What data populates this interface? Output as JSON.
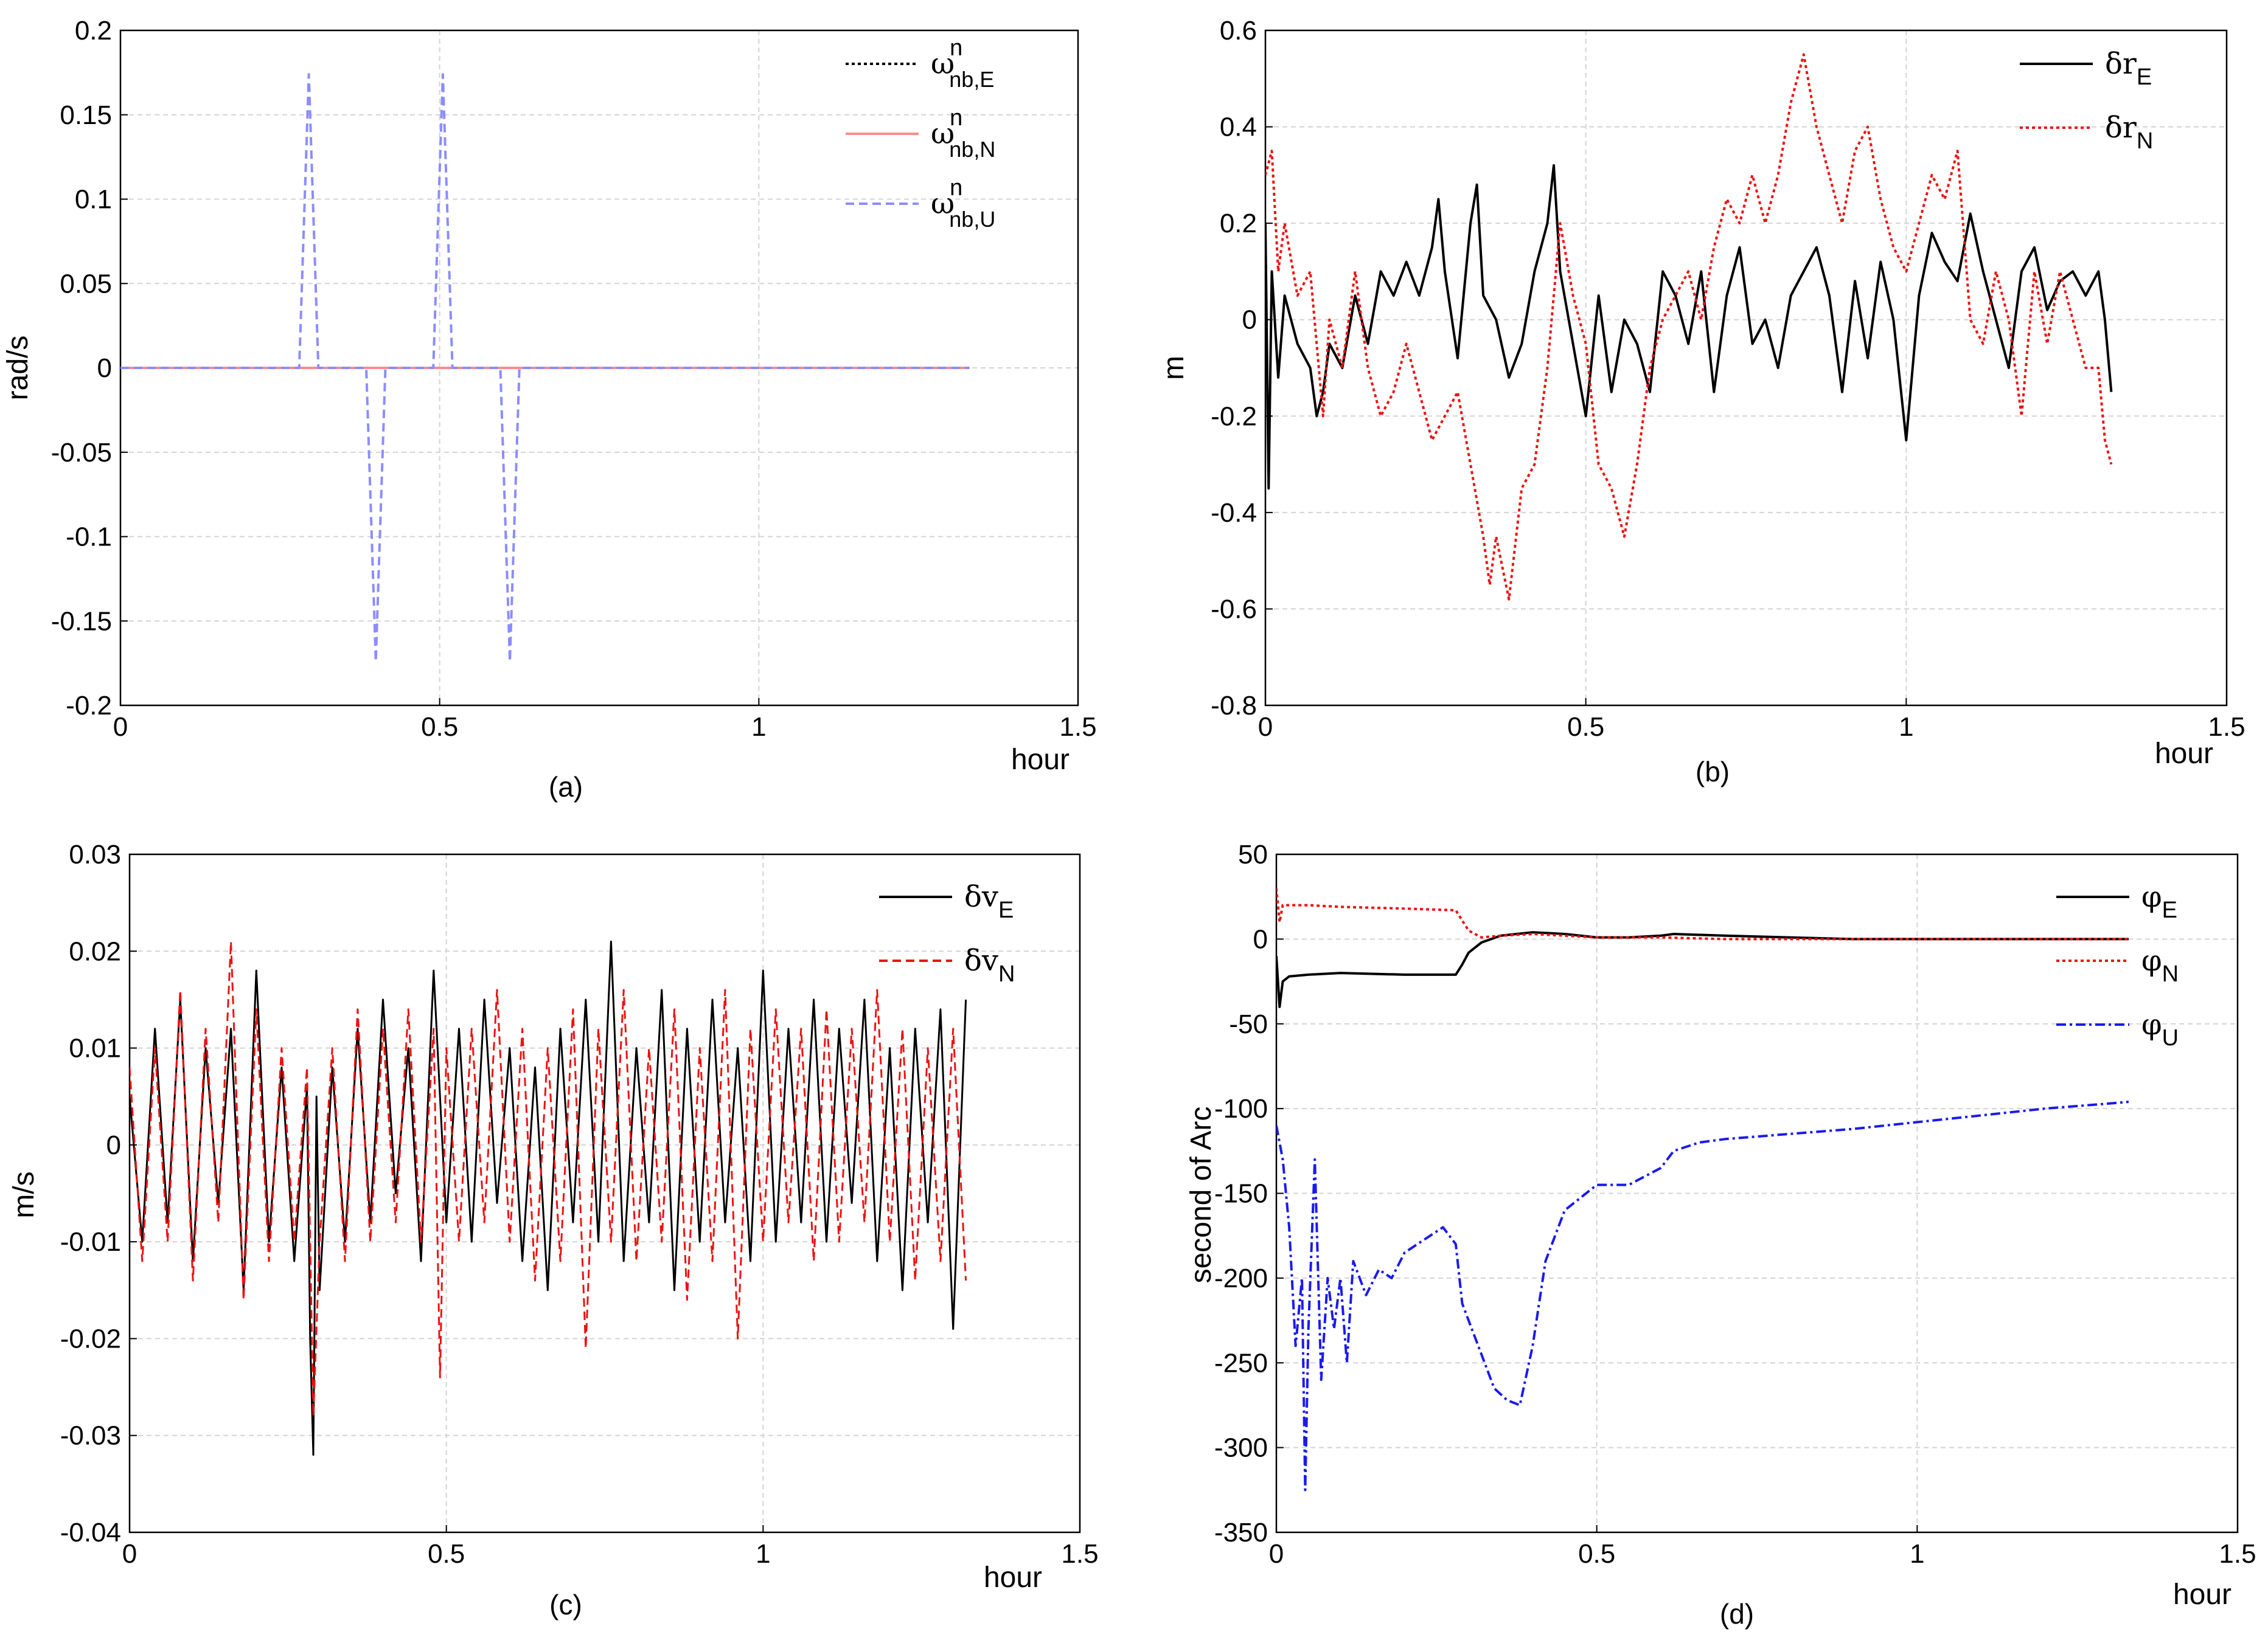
{
  "chart_data": [
    {
      "id": "a",
      "type": "line",
      "caption": "(a)",
      "xlabel": "hour",
      "ylabel": "rad/s",
      "xlim": [
        0,
        1.5
      ],
      "ylim": [
        -0.2,
        0.2
      ],
      "xticks": [
        0,
        0.5,
        1,
        1.5
      ],
      "xtick_labels": [
        "0",
        "0.5",
        "1",
        "1.5"
      ],
      "yticks": [
        -0.2,
        -0.15,
        -0.1,
        -0.05,
        0,
        0.05,
        0.1,
        0.15,
        0.2
      ],
      "ytick_labels": [
        "-0.2",
        "-0.15",
        "-0.1",
        "-0.05",
        "0",
        "0.05",
        "0.1",
        "0.15",
        "0.2"
      ],
      "grid": true,
      "legend_position": "top-right",
      "series": [
        {
          "name": "ω",
          "sup": "n",
          "sub": "nb,E",
          "color": "#000000",
          "style": "dotted",
          "x": [
            0,
            1.33
          ],
          "y": [
            0,
            0
          ]
        },
        {
          "name": "ω",
          "sup": "n",
          "sub": "nb,N",
          "color": "#ff8c8c",
          "style": "solid",
          "x": [
            0,
            1.33
          ],
          "y": [
            0,
            0
          ]
        },
        {
          "name": "ω",
          "sup": "n",
          "sub": "nb,U",
          "color": "#8c8cff",
          "style": "dashed",
          "x": [
            0,
            0.28,
            0.295,
            0.31,
            0.385,
            0.4,
            0.415,
            0.49,
            0.505,
            0.52,
            0.595,
            0.61,
            0.625,
            1.33
          ],
          "y": [
            0,
            0,
            0.174,
            0,
            0,
            -0.174,
            0,
            0,
            0.174,
            0,
            0,
            -0.174,
            0,
            0
          ]
        }
      ]
    },
    {
      "id": "b",
      "type": "line",
      "caption": "(b)",
      "xlabel": "hour",
      "ylabel": "m",
      "xlim": [
        0,
        1.5
      ],
      "ylim": [
        -0.8,
        0.6
      ],
      "xticks": [
        0,
        0.5,
        1,
        1.5
      ],
      "xtick_labels": [
        "0",
        "0.5",
        "1",
        "1.5"
      ],
      "yticks": [
        -0.8,
        -0.6,
        -0.4,
        -0.2,
        0,
        0.2,
        0.4,
        0.6
      ],
      "ytick_labels": [
        "-0.8",
        "-0.6",
        "-0.4",
        "-0.2",
        "0",
        "0.2",
        "0.4",
        "0.6"
      ],
      "grid": true,
      "legend_position": "top-right",
      "series": [
        {
          "name": "δr",
          "sub": "E",
          "color": "#000000",
          "style": "solid",
          "x": [
            0,
            0.005,
            0.01,
            0.02,
            0.03,
            0.05,
            0.07,
            0.08,
            0.09,
            0.1,
            0.12,
            0.14,
            0.16,
            0.18,
            0.2,
            0.22,
            0.24,
            0.26,
            0.27,
            0.28,
            0.3,
            0.32,
            0.33,
            0.34,
            0.36,
            0.38,
            0.4,
            0.42,
            0.44,
            0.45,
            0.46,
            0.48,
            0.5,
            0.52,
            0.54,
            0.56,
            0.58,
            0.6,
            0.62,
            0.64,
            0.66,
            0.68,
            0.7,
            0.72,
            0.74,
            0.76,
            0.78,
            0.8,
            0.82,
            0.84,
            0.86,
            0.88,
            0.9,
            0.92,
            0.94,
            0.96,
            0.98,
            1.0,
            1.02,
            1.04,
            1.06,
            1.08,
            1.1,
            1.12,
            1.14,
            1.16,
            1.18,
            1.2,
            1.22,
            1.24,
            1.26,
            1.28,
            1.3,
            1.31,
            1.32
          ],
          "y": [
            0.2,
            -0.35,
            0.1,
            -0.12,
            0.05,
            -0.05,
            -0.1,
            -0.2,
            -0.15,
            -0.05,
            -0.1,
            0.05,
            -0.05,
            0.1,
            0.05,
            0.12,
            0.05,
            0.15,
            0.25,
            0.1,
            -0.08,
            0.2,
            0.28,
            0.05,
            0.0,
            -0.12,
            -0.05,
            0.1,
            0.2,
            0.32,
            0.1,
            -0.05,
            -0.2,
            0.05,
            -0.15,
            0.0,
            -0.05,
            -0.15,
            0.1,
            0.05,
            -0.05,
            0.1,
            -0.15,
            0.05,
            0.15,
            -0.05,
            0.0,
            -0.1,
            0.05,
            0.1,
            0.15,
            0.05,
            -0.15,
            0.08,
            -0.08,
            0.12,
            0.0,
            -0.25,
            0.05,
            0.18,
            0.12,
            0.08,
            0.22,
            0.1,
            0.0,
            -0.1,
            0.1,
            0.15,
            0.02,
            0.08,
            0.1,
            0.05,
            0.1,
            0.0,
            -0.15
          ]
        },
        {
          "name": "δr",
          "sub": "N",
          "color": "#ee1111",
          "style": "dotted",
          "x": [
            0,
            0.01,
            0.02,
            0.03,
            0.05,
            0.07,
            0.09,
            0.1,
            0.12,
            0.14,
            0.16,
            0.18,
            0.2,
            0.22,
            0.24,
            0.26,
            0.28,
            0.3,
            0.32,
            0.34,
            0.35,
            0.36,
            0.38,
            0.4,
            0.42,
            0.44,
            0.46,
            0.48,
            0.5,
            0.52,
            0.54,
            0.56,
            0.58,
            0.6,
            0.62,
            0.64,
            0.66,
            0.68,
            0.7,
            0.72,
            0.74,
            0.76,
            0.78,
            0.8,
            0.82,
            0.84,
            0.86,
            0.88,
            0.9,
            0.92,
            0.94,
            0.96,
            0.98,
            1.0,
            1.02,
            1.04,
            1.06,
            1.08,
            1.1,
            1.12,
            1.14,
            1.16,
            1.18,
            1.2,
            1.22,
            1.24,
            1.26,
            1.28,
            1.3,
            1.31,
            1.32
          ],
          "y": [
            0.3,
            0.35,
            0.1,
            0.2,
            0.05,
            0.1,
            -0.2,
            0.0,
            -0.1,
            0.1,
            -0.1,
            -0.2,
            -0.15,
            -0.05,
            -0.15,
            -0.25,
            -0.2,
            -0.15,
            -0.3,
            -0.45,
            -0.55,
            -0.45,
            -0.58,
            -0.35,
            -0.3,
            -0.1,
            0.2,
            0.05,
            -0.05,
            -0.3,
            -0.35,
            -0.45,
            -0.3,
            -0.1,
            0.0,
            0.05,
            0.1,
            0.0,
            0.15,
            0.25,
            0.2,
            0.3,
            0.2,
            0.3,
            0.45,
            0.55,
            0.4,
            0.3,
            0.2,
            0.35,
            0.4,
            0.25,
            0.15,
            0.1,
            0.2,
            0.3,
            0.25,
            0.35,
            0.0,
            -0.05,
            0.1,
            0.0,
            -0.2,
            0.1,
            -0.05,
            0.1,
            0.0,
            -0.1,
            -0.1,
            -0.25,
            -0.3
          ]
        }
      ]
    },
    {
      "id": "c",
      "type": "line",
      "caption": "(c)",
      "xlabel": "hour",
      "ylabel": "m/s",
      "xlim": [
        0,
        1.5
      ],
      "ylim": [
        -0.04,
        0.03
      ],
      "xticks": [
        0,
        0.5,
        1,
        1.5
      ],
      "xtick_labels": [
        "0",
        "0.5",
        "1",
        "1.5"
      ],
      "yticks": [
        -0.04,
        -0.03,
        -0.02,
        -0.01,
        0,
        0.01,
        0.02,
        0.03
      ],
      "ytick_labels": [
        "-0.04",
        "-0.03",
        "-0.02",
        "-0.01",
        "0",
        "0.01",
        "0.02",
        "0.03"
      ],
      "grid": true,
      "legend_position": "top-right",
      "series": [
        {
          "name": "δv",
          "sub": "E",
          "color": "#000000",
          "style": "solid",
          "x": [
            0,
            0.02,
            0.04,
            0.06,
            0.08,
            0.1,
            0.12,
            0.14,
            0.16,
            0.18,
            0.2,
            0.22,
            0.24,
            0.26,
            0.28,
            0.285,
            0.29,
            0.295,
            0.3,
            0.32,
            0.34,
            0.36,
            0.38,
            0.4,
            0.42,
            0.44,
            0.46,
            0.48,
            0.5,
            0.52,
            0.54,
            0.56,
            0.58,
            0.6,
            0.62,
            0.64,
            0.66,
            0.68,
            0.7,
            0.72,
            0.74,
            0.76,
            0.78,
            0.8,
            0.82,
            0.84,
            0.86,
            0.88,
            0.9,
            0.92,
            0.94,
            0.96,
            0.98,
            1.0,
            1.02,
            1.04,
            1.06,
            1.08,
            1.1,
            1.12,
            1.14,
            1.16,
            1.18,
            1.2,
            1.22,
            1.24,
            1.26,
            1.28,
            1.3,
            1.32
          ],
          "y": [
            0.005,
            -0.01,
            0.012,
            -0.008,
            0.015,
            -0.012,
            0.01,
            -0.006,
            0.012,
            -0.015,
            0.018,
            -0.01,
            0.008,
            -0.012,
            0.006,
            -0.02,
            -0.032,
            0.005,
            -0.015,
            0.008,
            -0.01,
            0.012,
            -0.008,
            0.015,
            -0.005,
            0.01,
            -0.012,
            0.018,
            -0.008,
            0.012,
            -0.01,
            0.015,
            -0.006,
            0.01,
            -0.012,
            0.008,
            -0.015,
            0.012,
            -0.008,
            0.015,
            -0.01,
            0.021,
            -0.012,
            0.01,
            -0.008,
            0.016,
            -0.015,
            0.012,
            -0.01,
            0.015,
            -0.008,
            0.01,
            -0.012,
            0.018,
            -0.01,
            0.012,
            -0.008,
            0.015,
            -0.01,
            0.012,
            -0.006,
            0.015,
            -0.012,
            0.01,
            -0.015,
            0.012,
            -0.008,
            0.014,
            -0.019,
            0.015
          ]
        },
        {
          "name": "δv",
          "sub": "N",
          "color": "#ee1111",
          "style": "dashed",
          "x": [
            0,
            0.02,
            0.04,
            0.06,
            0.08,
            0.1,
            0.12,
            0.14,
            0.16,
            0.18,
            0.2,
            0.22,
            0.24,
            0.26,
            0.28,
            0.29,
            0.3,
            0.32,
            0.34,
            0.36,
            0.38,
            0.4,
            0.42,
            0.44,
            0.46,
            0.48,
            0.49,
            0.5,
            0.52,
            0.54,
            0.56,
            0.58,
            0.6,
            0.62,
            0.64,
            0.66,
            0.68,
            0.7,
            0.72,
            0.74,
            0.76,
            0.78,
            0.8,
            0.82,
            0.84,
            0.86,
            0.88,
            0.9,
            0.92,
            0.94,
            0.96,
            0.98,
            1.0,
            1.02,
            1.04,
            1.06,
            1.08,
            1.1,
            1.12,
            1.14,
            1.16,
            1.18,
            1.2,
            1.22,
            1.24,
            1.26,
            1.28,
            1.3,
            1.32
          ],
          "y": [
            0.008,
            -0.012,
            0.01,
            -0.01,
            0.016,
            -0.014,
            0.012,
            -0.008,
            0.021,
            -0.016,
            0.014,
            -0.012,
            0.01,
            -0.01,
            0.008,
            -0.028,
            -0.01,
            0.01,
            -0.012,
            0.014,
            -0.01,
            0.012,
            -0.008,
            0.014,
            -0.01,
            0.012,
            -0.024,
            0.01,
            -0.01,
            0.012,
            -0.008,
            0.016,
            -0.01,
            0.012,
            -0.014,
            0.01,
            -0.012,
            0.014,
            -0.021,
            0.012,
            -0.01,
            0.016,
            -0.012,
            0.01,
            -0.01,
            0.014,
            -0.016,
            0.01,
            -0.012,
            0.016,
            -0.02,
            0.012,
            -0.01,
            0.014,
            -0.008,
            0.012,
            -0.012,
            0.014,
            -0.01,
            0.012,
            -0.008,
            0.016,
            -0.01,
            0.012,
            -0.014,
            0.01,
            -0.012,
            0.012,
            -0.014
          ]
        }
      ]
    },
    {
      "id": "d",
      "type": "line",
      "caption": "(d)",
      "xlabel": "hour",
      "ylabel": "second of Arc",
      "xlim": [
        0,
        1.5
      ],
      "ylim": [
        -350,
        50
      ],
      "xticks": [
        0,
        0.5,
        1,
        1.5
      ],
      "xtick_labels": [
        "0",
        "0.5",
        "1",
        "1.5"
      ],
      "yticks": [
        -350,
        -300,
        -250,
        -200,
        -150,
        -100,
        -50,
        0,
        50
      ],
      "ytick_labels": [
        "-350",
        "-300",
        "-250",
        "-200",
        "-150",
        "-100",
        "-50",
        "0",
        "50"
      ],
      "grid": true,
      "legend_position": "top-right",
      "series": [
        {
          "name": "φ",
          "sub": "E",
          "color": "#000000",
          "style": "solid",
          "x": [
            0,
            0.005,
            0.01,
            0.02,
            0.05,
            0.1,
            0.2,
            0.28,
            0.29,
            0.3,
            0.32,
            0.35,
            0.4,
            0.45,
            0.5,
            0.55,
            0.6,
            0.62,
            0.7,
            0.8,
            0.9,
            1.0,
            1.1,
            1.2,
            1.3,
            1.33
          ],
          "y": [
            -10,
            -40,
            -25,
            -22,
            -21,
            -20,
            -21,
            -21,
            -15,
            -8,
            -2,
            2,
            4,
            3,
            1,
            1,
            2,
            3,
            2,
            1,
            0,
            0,
            0,
            0,
            0,
            0
          ]
        },
        {
          "name": "φ",
          "sub": "N",
          "color": "#ee1111",
          "style": "dotted",
          "x": [
            0,
            0.005,
            0.01,
            0.02,
            0.05,
            0.1,
            0.2,
            0.28,
            0.3,
            0.32,
            0.35,
            0.4,
            0.5,
            0.6,
            0.7,
            0.8,
            0.9,
            1.0,
            1.1,
            1.2,
            1.3,
            1.33
          ],
          "y": [
            30,
            10,
            20,
            20,
            20,
            19,
            18,
            17,
            5,
            1,
            2,
            3,
            1,
            1,
            0,
            0,
            0,
            0,
            0,
            0,
            0,
            0
          ]
        },
        {
          "name": "φ",
          "sub": "U",
          "color": "#1a1aee",
          "style": "dashdot",
          "x": [
            0,
            0.01,
            0.02,
            0.03,
            0.04,
            0.045,
            0.05,
            0.06,
            0.07,
            0.08,
            0.09,
            0.1,
            0.11,
            0.12,
            0.14,
            0.16,
            0.18,
            0.2,
            0.22,
            0.24,
            0.26,
            0.28,
            0.29,
            0.3,
            0.32,
            0.34,
            0.36,
            0.38,
            0.4,
            0.42,
            0.45,
            0.5,
            0.55,
            0.6,
            0.62,
            0.66,
            0.7,
            0.8,
            0.9,
            1.0,
            1.1,
            1.2,
            1.3,
            1.33
          ],
          "y": [
            -110,
            -130,
            -170,
            -240,
            -200,
            -325,
            -230,
            -130,
            -260,
            -200,
            -230,
            -200,
            -250,
            -190,
            -210,
            -195,
            -200,
            -185,
            -180,
            -175,
            -170,
            -180,
            -215,
            -225,
            -245,
            -265,
            -272,
            -275,
            -240,
            -190,
            -160,
            -145,
            -145,
            -135,
            -125,
            -120,
            -118,
            -115,
            -112,
            -108,
            -104,
            -100,
            -97,
            -96
          ]
        }
      ]
    }
  ]
}
